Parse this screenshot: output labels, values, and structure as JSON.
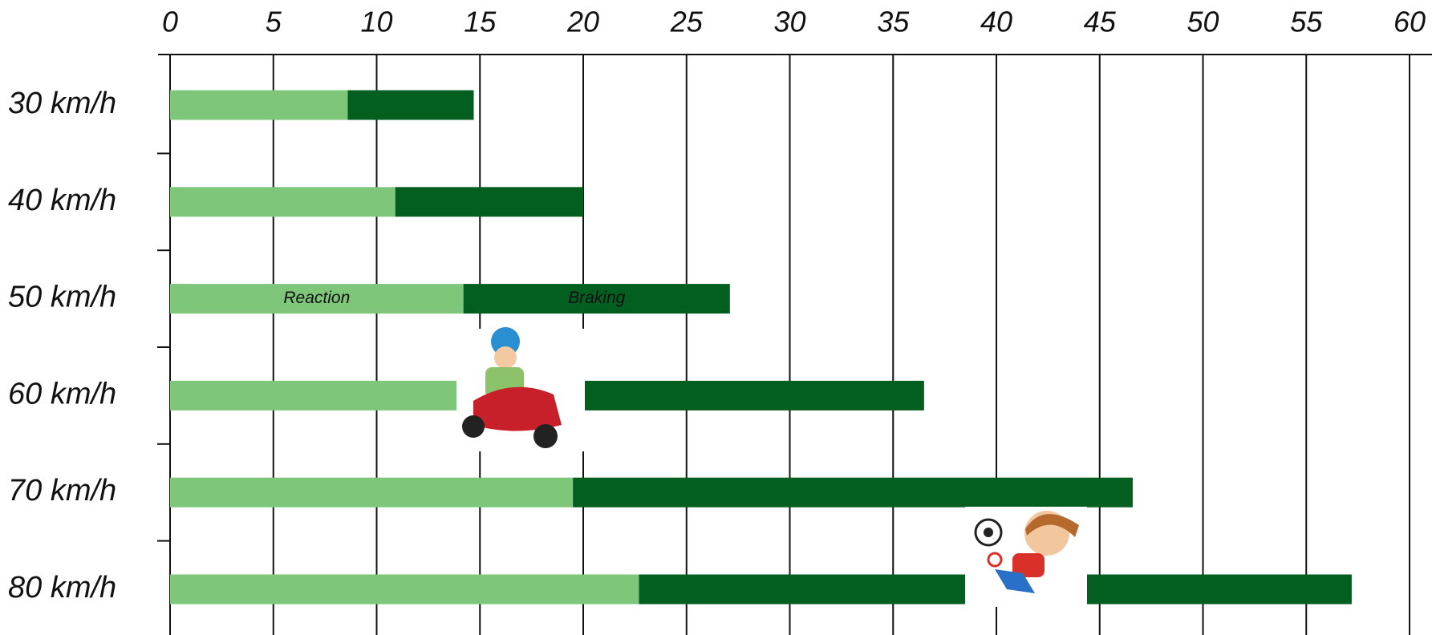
{
  "chart_data": {
    "type": "stacked_barh",
    "categories": [
      "30 km/h",
      "40 km/h",
      "50 km/h",
      "60 km/h",
      "70 km/h",
      "80 km/h"
    ],
    "series": [
      {
        "name": "Reaction",
        "color": "#7dc67a",
        "values": [
          8.6,
          10.9,
          14.2,
          16.7,
          19.5,
          22.7
        ]
      },
      {
        "name": "Braking",
        "color": "#035f20",
        "values": [
          6.1,
          9.1,
          12.9,
          19.8,
          27.1,
          34.5
        ]
      }
    ],
    "xlim": [
      0,
      60
    ],
    "xticks": [
      0,
      5,
      10,
      15,
      20,
      25,
      30,
      35,
      40,
      45,
      50,
      55,
      60
    ],
    "grid": true
  }
}
